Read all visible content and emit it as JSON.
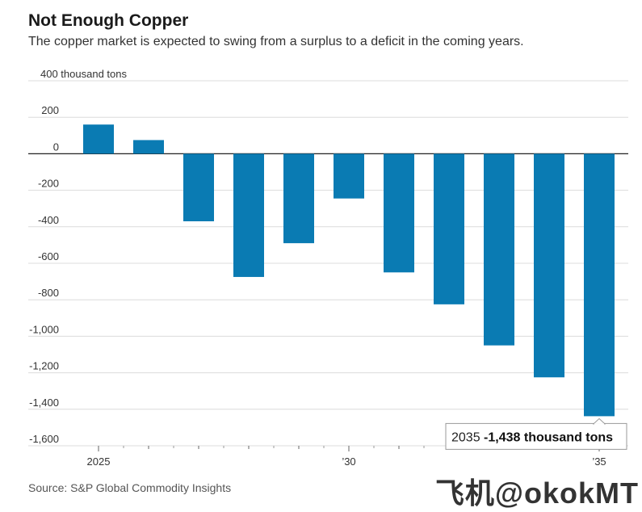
{
  "chart_data": {
    "type": "bar",
    "title": "Not Enough Copper",
    "subtitle": "The copper market is expected to swing from a surplus to a deficit in the coming years.",
    "unit_label": "400 thousand tons",
    "categories": [
      "2025",
      "2026",
      "2027",
      "2028",
      "2029",
      "2030",
      "2031",
      "2032",
      "2033",
      "2034",
      "2035"
    ],
    "values": [
      160,
      75,
      -370,
      -675,
      -490,
      -245,
      -650,
      -825,
      -1050,
      -1225,
      -1438
    ],
    "ylim": [
      -1600,
      400
    ],
    "yticks": [
      400,
      200,
      0,
      -200,
      -400,
      -600,
      -800,
      -1000,
      -1200,
      -1400,
      -1600
    ],
    "ytick_labels": [
      "",
      "200",
      "0",
      "-200",
      "-400",
      "-600",
      "-800",
      "-1,000",
      "-1,200",
      "-1,400",
      "-1,600"
    ],
    "xtick_labels": [
      {
        "category": "2025",
        "label": "2025"
      },
      {
        "category": "2030",
        "label": "’30"
      },
      {
        "category": "2035",
        "label": "’35"
      }
    ],
    "bar_color": "#0a7bb3",
    "grid": true,
    "annotation": {
      "category": "2035",
      "year_text": "2035",
      "value_text": "-1,438 thousand tons"
    }
  },
  "source": "Source: S&P Global Commodity Insights",
  "watermark": "飞机@okokMT"
}
